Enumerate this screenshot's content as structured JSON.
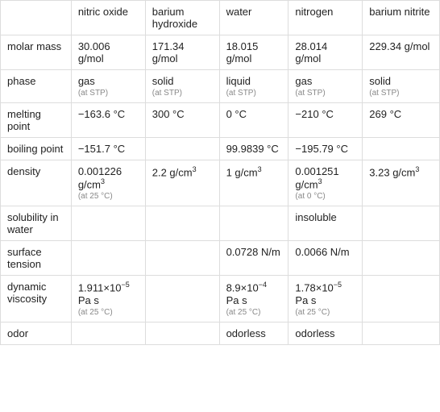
{
  "columns": [
    "",
    "nitric oxide",
    "barium hydroxide",
    "water",
    "nitrogen",
    "barium nitrite"
  ],
  "column_widths": [
    "88px",
    "92px",
    "92px",
    "86px",
    "92px",
    "96px"
  ],
  "rows": [
    {
      "header": "molar mass",
      "cells": [
        {
          "value": "30.006 g/mol",
          "sub": ""
        },
        {
          "value": "171.34 g/mol",
          "sub": ""
        },
        {
          "value": "18.015 g/mol",
          "sub": ""
        },
        {
          "value": "28.014 g/mol",
          "sub": ""
        },
        {
          "value": "229.34 g/mol",
          "sub": ""
        }
      ]
    },
    {
      "header": "phase",
      "cells": [
        {
          "value": "gas",
          "sub": "(at STP)"
        },
        {
          "value": "solid",
          "sub": "(at STP)"
        },
        {
          "value": "liquid",
          "sub": "(at STP)"
        },
        {
          "value": "gas",
          "sub": "(at STP)"
        },
        {
          "value": "solid",
          "sub": "(at STP)"
        }
      ]
    },
    {
      "header": "melting point",
      "cells": [
        {
          "value": "−163.6 °C",
          "sub": ""
        },
        {
          "value": "300 °C",
          "sub": ""
        },
        {
          "value": "0 °C",
          "sub": ""
        },
        {
          "value": "−210 °C",
          "sub": ""
        },
        {
          "value": "269 °C",
          "sub": ""
        }
      ]
    },
    {
      "header": "boiling point",
      "cells": [
        {
          "value": "−151.7 °C",
          "sub": ""
        },
        {
          "value": "",
          "sub": ""
        },
        {
          "value": "99.9839 °C",
          "sub": ""
        },
        {
          "value": "−195.79 °C",
          "sub": ""
        },
        {
          "value": "",
          "sub": ""
        }
      ]
    },
    {
      "header": "density",
      "cells": [
        {
          "value_html": "0.001226 g/cm<sup>3</sup>",
          "sub": "(at 25 °C)"
        },
        {
          "value_html": "2.2 g/cm<sup>3</sup>",
          "sub": ""
        },
        {
          "value_html": "1 g/cm<sup>3</sup>",
          "sub": ""
        },
        {
          "value_html": "0.001251 g/cm<sup>3</sup>",
          "sub": "(at 0 °C)"
        },
        {
          "value_html": "3.23 g/cm<sup>3</sup>",
          "sub": ""
        }
      ]
    },
    {
      "header": "solubility in water",
      "cells": [
        {
          "value": "",
          "sub": ""
        },
        {
          "value": "",
          "sub": ""
        },
        {
          "value": "",
          "sub": ""
        },
        {
          "value": "insoluble",
          "sub": ""
        },
        {
          "value": "",
          "sub": ""
        }
      ]
    },
    {
      "header": "surface tension",
      "cells": [
        {
          "value": "",
          "sub": ""
        },
        {
          "value": "",
          "sub": ""
        },
        {
          "value": "0.0728 N/m",
          "sub": ""
        },
        {
          "value": "0.0066 N/m",
          "sub": ""
        },
        {
          "value": "",
          "sub": ""
        }
      ]
    },
    {
      "header": "dynamic viscosity",
      "cells": [
        {
          "value_html": "1.911×10<sup>−5</sup> Pa s",
          "sub": "(at 25 °C)"
        },
        {
          "value": "",
          "sub": ""
        },
        {
          "value_html": "8.9×10<sup>−4</sup> Pa s",
          "sub": "(at 25 °C)"
        },
        {
          "value_html": "1.78×10<sup>−5</sup> Pa s",
          "sub": "(at 25 °C)"
        },
        {
          "value": "",
          "sub": ""
        }
      ]
    },
    {
      "header": "odor",
      "cells": [
        {
          "value": "",
          "sub": ""
        },
        {
          "value": "",
          "sub": ""
        },
        {
          "value": "odorless",
          "sub": ""
        },
        {
          "value": "odorless",
          "sub": ""
        },
        {
          "value": "",
          "sub": ""
        }
      ]
    }
  ],
  "styling": {
    "border_color": "#dddddd",
    "text_color": "#222222",
    "sub_color": "#888888",
    "background": "#ffffff",
    "font_size_main": 13,
    "font_size_sub": 10
  }
}
